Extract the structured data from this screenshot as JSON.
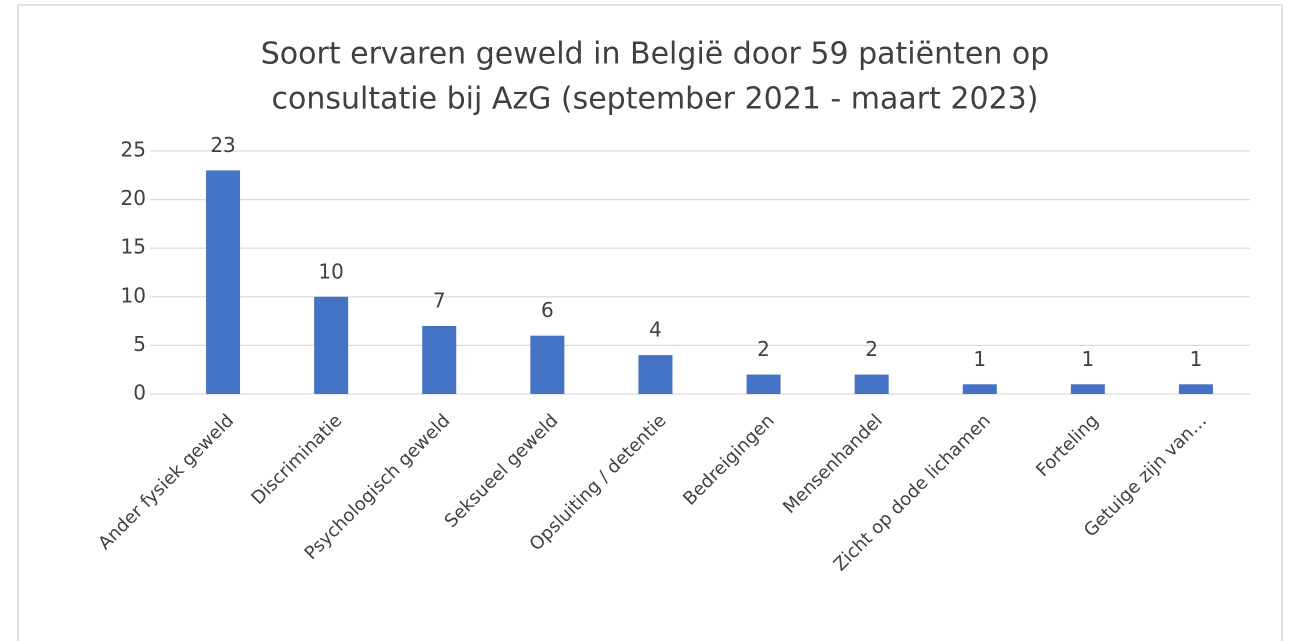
{
  "chart_data": {
    "type": "bar",
    "title": [
      "Soort ervaren geweld in België door 59 patiënten op",
      "consultatie bij AzG (september 2021 - maart 2023)"
    ],
    "categories": [
      "Ander fysiek geweld",
      "Discriminatie",
      "Psychologisch geweld",
      "Seksueel geweld",
      "Opsluiting / detentie",
      "Bedreigingen",
      "Mensenhandel",
      "Zicht op dode lichamen",
      "Forteling",
      "Getuige zijn van…"
    ],
    "values": [
      23,
      10,
      7,
      6,
      4,
      2,
      2,
      1,
      1,
      1
    ],
    "color": "#4472c4",
    "ylim": [
      0,
      25
    ],
    "yticks": [
      0,
      5,
      10,
      15,
      20,
      25
    ],
    "grid": true
  }
}
